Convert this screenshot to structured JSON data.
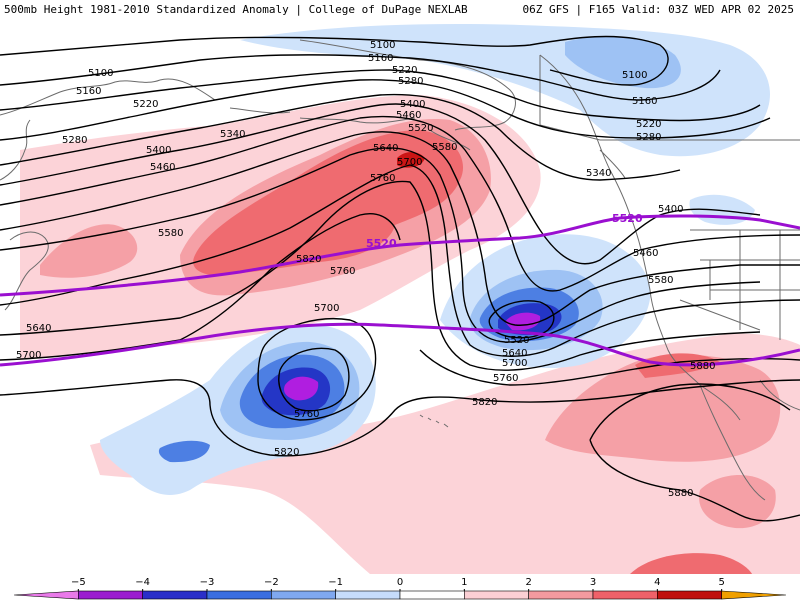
{
  "header": {
    "title_left": "500mb Height 1981-2010 Standardized Anomaly | College of DuPage NEXLAB",
    "title_right": "06Z GFS | F165 Valid: 03Z WED APR 02 2025"
  },
  "contour_labels": {
    "l5100a": "5100",
    "l5160a": "5160",
    "l5220a": "5220",
    "l5280a": "5280",
    "l5340a": "5340",
    "l5400a": "5400",
    "l5460a": "5460",
    "l5580a": "5580",
    "l5640a": "5640",
    "l5700a": "5700",
    "l5820a": "5820",
    "l5760a": "5760",
    "l5100b": "5100",
    "l5160b": "5160",
    "l5220b": "5220",
    "l5280b": "5280",
    "l5400b": "5400",
    "l5460b": "5460",
    "l5520b": "5520",
    "l5580b": "5580",
    "l5640b": "5640",
    "l5700b": "5700",
    "l5760b": "5760",
    "l5100c": "5100",
    "l5160c": "5160",
    "l5220c": "5220",
    "l5280c": "5280",
    "l5340c": "5340",
    "l5400c": "5400",
    "l5460c": "5460",
    "l5580c": "5580",
    "l5700c": "5700",
    "l5760c": "5760",
    "l5820b": "5820",
    "l5520low": "5520",
    "l5640low": "5640",
    "l5700low": "5700",
    "l5760low": "5760",
    "l5820c": "5820",
    "l5880a": "5880",
    "l5880b": "5880",
    "l5760d": "5760",
    "l5700d": "5700",
    "l5820d": "5820",
    "l5580d": "5580"
  },
  "climo_labels": {
    "c5520": "5520",
    "c5880": "5880"
  },
  "colorbar": {
    "ticks": [
      "−5",
      "−4",
      "−3",
      "−2",
      "−1",
      "0",
      "1",
      "2",
      "3",
      "4",
      "5"
    ],
    "colors": [
      "#e97ae9",
      "#9b1ccf",
      "#2a2fc9",
      "#3a6ee0",
      "#7fa8f0",
      "#c6dcfa",
      "#ffffff",
      "#fbcfd4",
      "#f39a9f",
      "#ef6169",
      "#c0100d",
      "#f0a000"
    ]
  },
  "colors": {
    "pos1": "#fcd3d8",
    "pos2": "#f5a0a6",
    "pos3": "#ef6b70",
    "pos4": "#cc1515",
    "neg1": "#cfe3fb",
    "neg2": "#9ec2f4",
    "neg3": "#4d7fe3",
    "neg4": "#2436c6",
    "neg5": "#b01ee0",
    "climo_line": "#9a0fd0",
    "contour": "#000000",
    "borders": "#6b6b6b"
  }
}
